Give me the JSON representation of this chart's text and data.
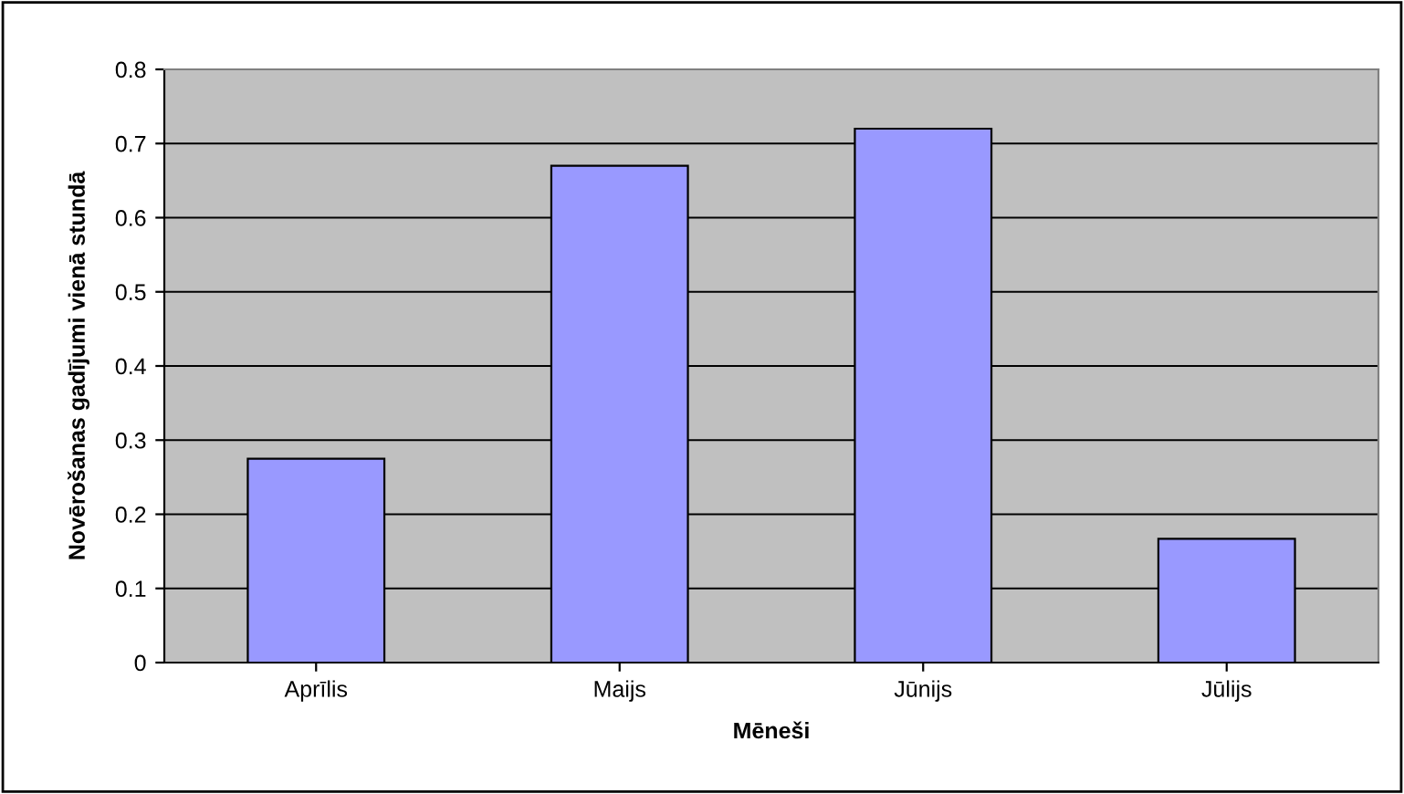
{
  "chart_data": {
    "type": "bar",
    "xlabel": "Mēneši",
    "ylabel": "Novērošanas gadījumi vienā stundā",
    "categories": [
      "Aprīlis",
      "Maijs",
      "Jūnijs",
      "Jūlijs"
    ],
    "values": [
      0.275,
      0.67,
      0.72,
      0.167
    ],
    "color": "#9999ff",
    "ylim": [
      0,
      0.8
    ],
    "yticks": [
      0,
      0.1,
      0.2,
      0.3,
      0.4,
      0.5,
      0.6,
      0.7,
      0.8
    ],
    "grid": "y"
  }
}
